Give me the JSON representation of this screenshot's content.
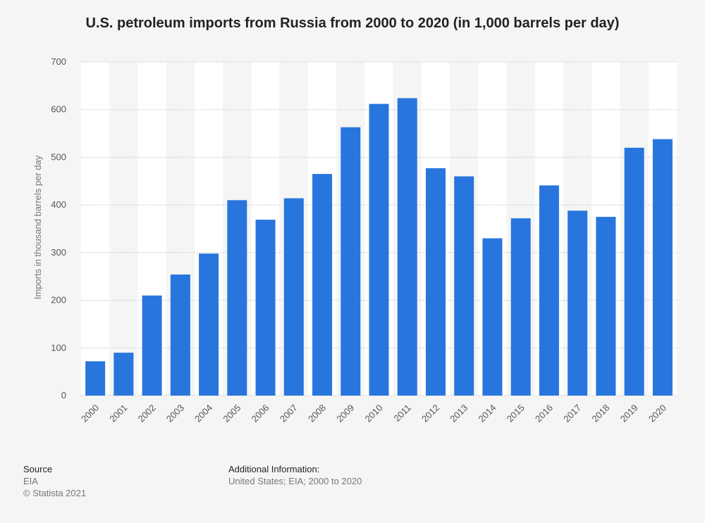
{
  "chart_data": {
    "type": "bar",
    "title": "U.S. petroleum imports from Russia from 2000 to 2020 (in 1,000 barrels per day)",
    "xlabel": "",
    "ylabel": "Imports in thousand barrels per day",
    "categories": [
      "2000",
      "2001",
      "2002",
      "2003",
      "2004",
      "2005",
      "2006",
      "2007",
      "2008",
      "2009",
      "2010",
      "2011",
      "2012",
      "2013",
      "2014",
      "2015",
      "2016",
      "2017",
      "2018",
      "2019",
      "2020"
    ],
    "values": [
      72,
      90,
      210,
      254,
      298,
      410,
      369,
      414,
      465,
      563,
      612,
      624,
      477,
      460,
      330,
      372,
      441,
      388,
      375,
      520,
      538
    ],
    "ylim": [
      0,
      700
    ],
    "yticks": [
      0,
      100,
      200,
      300,
      400,
      500,
      600,
      700
    ],
    "grid": true,
    "bar_color": "#2876dd"
  },
  "footer": {
    "source_label": "Source",
    "source_value": "EIA",
    "copyright": "© Statista 2021",
    "additional_label": "Additional Information:",
    "additional_value": "United States; EIA; 2000 to 2020"
  }
}
